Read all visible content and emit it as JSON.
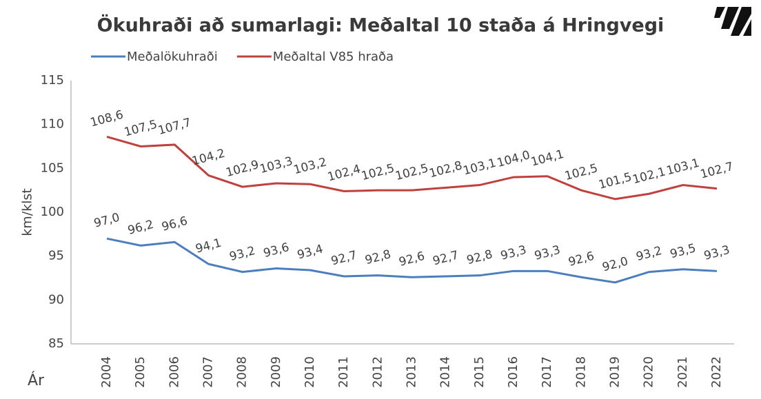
{
  "chart_data": {
    "type": "line",
    "title": "Ökuhraði að sumarlagi: Meðaltal 10 staða á Hringvegi",
    "y_label": "km/klst",
    "x_label": "Ár",
    "categories": [
      "2004",
      "2005",
      "2006",
      "2007",
      "2008",
      "2009",
      "2010",
      "2011",
      "2012",
      "2013",
      "2014",
      "2015",
      "2016",
      "2017",
      "2018",
      "2019",
      "2020",
      "2021",
      "2022"
    ],
    "series": [
      {
        "name": "Meðalökuhraði",
        "color": "#4a7ebf",
        "values": [
          97.0,
          96.2,
          96.6,
          94.1,
          93.2,
          93.6,
          93.4,
          92.7,
          92.8,
          92.6,
          92.7,
          92.8,
          93.3,
          93.3,
          92.6,
          92.0,
          93.2,
          93.5,
          93.3
        ],
        "value_labels": [
          "97,0",
          "96,2",
          "96,6",
          "94,1",
          "93,2",
          "93,6",
          "93,4",
          "92,7",
          "92,8",
          "92,6",
          "92,7",
          "92,8",
          "93,3",
          "93,3",
          "92,6",
          "92,0",
          "93,2",
          "93,5",
          "93,3"
        ]
      },
      {
        "name": "Meðaltal V85 hraða",
        "color": "#c0403c",
        "values": [
          108.6,
          107.5,
          107.7,
          104.2,
          102.9,
          103.3,
          103.2,
          102.4,
          102.5,
          102.5,
          102.8,
          103.1,
          104.0,
          104.1,
          102.5,
          101.5,
          102.1,
          103.1,
          102.7
        ],
        "value_labels": [
          "108,6",
          "107,5",
          "107,7",
          "104,2",
          "102,9",
          "103,3",
          "103,2",
          "102,4",
          "102,5",
          "102,5",
          "102,8",
          "103,1",
          "104,0",
          "104,1",
          "102,5",
          "101,5",
          "102,1",
          "103,1",
          "102,7"
        ]
      }
    ],
    "ylim": [
      85,
      115
    ],
    "yticks": [
      85,
      90,
      95,
      100,
      105,
      110,
      115
    ],
    "grid": false,
    "legend": "top"
  }
}
